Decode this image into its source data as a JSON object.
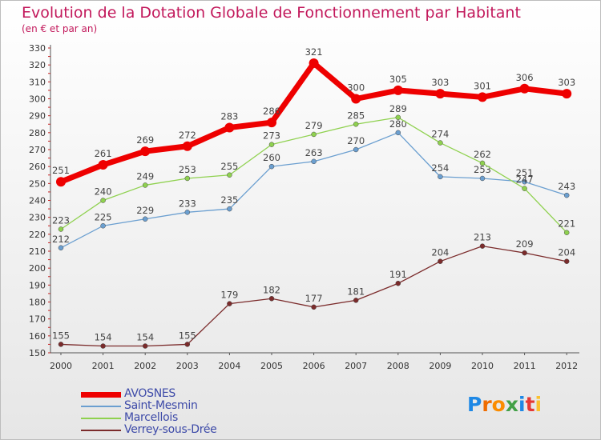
{
  "title": "Evolution de la Dotation Globale de Fonctionnement par Habitant",
  "subtitle": "(en € et par an)",
  "logo": "Proxiti",
  "colors": {
    "title": "#c2185b"
  },
  "chart_data": {
    "type": "line",
    "title": "Evolution de la Dotation Globale de Fonctionnement par Habitant",
    "subtitle": "(en € et par an)",
    "xlabel": "",
    "ylabel": "",
    "x": [
      2000,
      2001,
      2002,
      2003,
      2004,
      2005,
      2006,
      2007,
      2008,
      2009,
      2010,
      2011,
      2012
    ],
    "ylim": [
      150,
      330
    ],
    "yticks": [
      150,
      160,
      170,
      180,
      190,
      200,
      210,
      220,
      230,
      240,
      250,
      260,
      270,
      280,
      290,
      300,
      310,
      320,
      330
    ],
    "grid": false,
    "legend_position": "bottom-left",
    "series": [
      {
        "name": "AVOSNES",
        "color": "#ee0000",
        "values": [
          251,
          261,
          269,
          272,
          283,
          286,
          321,
          300,
          305,
          303,
          301,
          306,
          303
        ]
      },
      {
        "name": "Saint-Mesmin",
        "color": "#6b9fd0",
        "values": [
          212,
          225,
          229,
          233,
          235,
          260,
          263,
          270,
          280,
          254,
          253,
          251,
          243
        ]
      },
      {
        "name": "Marcellois",
        "color": "#8fd14f",
        "values": [
          223,
          240,
          249,
          253,
          255,
          273,
          279,
          285,
          289,
          274,
          262,
          247,
          221
        ]
      },
      {
        "name": "Verrey-sous-Drée",
        "color": "#7b2b2b",
        "values": [
          155,
          154,
          154,
          155,
          179,
          182,
          177,
          181,
          191,
          204,
          213,
          209,
          204
        ]
      }
    ]
  }
}
